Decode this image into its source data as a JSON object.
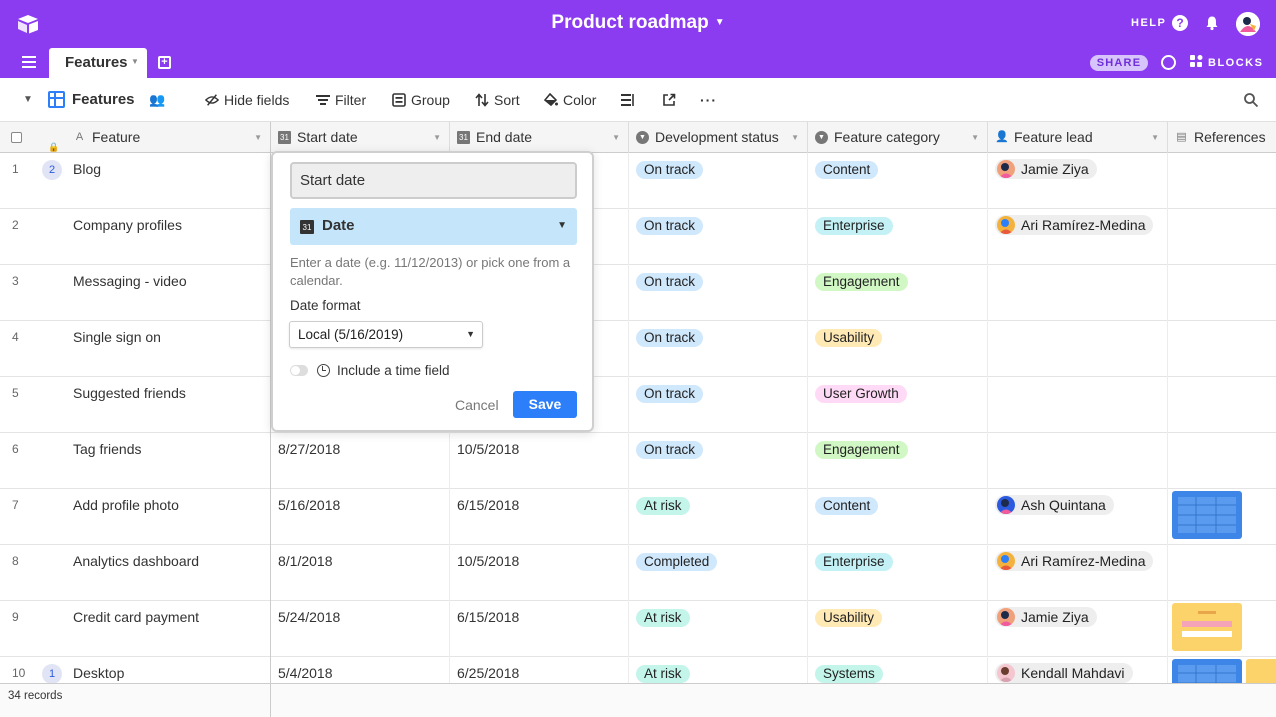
{
  "app": {
    "base_title": "Product roadmap",
    "help_label": "HELP",
    "share_label": "SHARE",
    "blocks_label": "BLOCKS"
  },
  "tabs": [
    {
      "label": "Features",
      "active": true
    }
  ],
  "view": {
    "name": "Features",
    "toolbar": {
      "hide_fields": "Hide fields",
      "filter": "Filter",
      "group": "Group",
      "sort": "Sort",
      "color": "Color"
    }
  },
  "columns": [
    "Feature",
    "Start date",
    "End date",
    "Development status",
    "Feature category",
    "Feature lead",
    "References"
  ],
  "rows": [
    {
      "num": "1",
      "comments": "2",
      "feature": "Blog",
      "start": "",
      "end": "",
      "status": "On track",
      "category": "Content",
      "lead": "Jamie Ziya",
      "ref": ""
    },
    {
      "num": "2",
      "comments": "",
      "feature": "Company profiles",
      "start": "",
      "end": "",
      "status": "On track",
      "category": "Enterprise",
      "lead": "Ari Ramírez-Medina",
      "ref": ""
    },
    {
      "num": "3",
      "comments": "",
      "feature": "Messaging - video",
      "start": "",
      "end": "",
      "status": "On track",
      "category": "Engagement",
      "lead": "",
      "ref": ""
    },
    {
      "num": "4",
      "comments": "",
      "feature": "Single sign on",
      "start": "",
      "end": "",
      "status": "On track",
      "category": "Usability",
      "lead": "",
      "ref": ""
    },
    {
      "num": "5",
      "comments": "",
      "feature": "Suggested friends",
      "start": "",
      "end": "",
      "status": "On track",
      "category": "User Growth",
      "lead": "",
      "ref": ""
    },
    {
      "num": "6",
      "comments": "",
      "feature": "Tag friends",
      "start": "8/27/2018",
      "end": "10/5/2018",
      "status": "On track",
      "category": "Engagement",
      "lead": "",
      "ref": ""
    },
    {
      "num": "7",
      "comments": "",
      "feature": "Add profile photo",
      "start": "5/16/2018",
      "end": "6/15/2018",
      "status": "At risk",
      "category": "Content",
      "lead": "Ash Quintana",
      "ref": "blue"
    },
    {
      "num": "8",
      "comments": "",
      "feature": "Analytics dashboard",
      "start": "8/1/2018",
      "end": "10/5/2018",
      "status": "Completed",
      "category": "Enterprise",
      "lead": "Ari Ramírez-Medina",
      "ref": ""
    },
    {
      "num": "9",
      "comments": "",
      "feature": "Credit card payment",
      "start": "5/24/2018",
      "end": "6/15/2018",
      "status": "At risk",
      "category": "Usability",
      "lead": "Jamie Ziya",
      "ref": "yellow"
    },
    {
      "num": "10",
      "comments": "1",
      "feature": "Desktop",
      "start": "5/4/2018",
      "end": "6/25/2018",
      "status": "At risk",
      "category": "Systems",
      "lead": "Kendall Mahdavi",
      "ref": "blue"
    }
  ],
  "colors": {
    "header": "#8b3cf0",
    "status": {
      "On track": "#d0e8fc",
      "At risk": "#c3f5ea",
      "Completed": "#d0e8fc"
    },
    "category": {
      "Content": "#d0e8fc",
      "Enterprise": "#c3f1f5",
      "Engagement": "#d1f7c4",
      "Usability": "#ffeab6",
      "User Growth": "#ffdaf6",
      "Systems": "#c3f5ea"
    }
  },
  "footer": {
    "record_count": "34 records"
  },
  "popover": {
    "field_name": "Start date",
    "field_type": "Date",
    "help_text": "Enter a date (e.g. 11/12/2013) or pick one from a calendar.",
    "date_format_label": "Date format",
    "date_format_value": "Local (5/16/2019)",
    "include_time_label": "Include a time field",
    "include_time": false,
    "cancel_label": "Cancel",
    "save_label": "Save"
  }
}
